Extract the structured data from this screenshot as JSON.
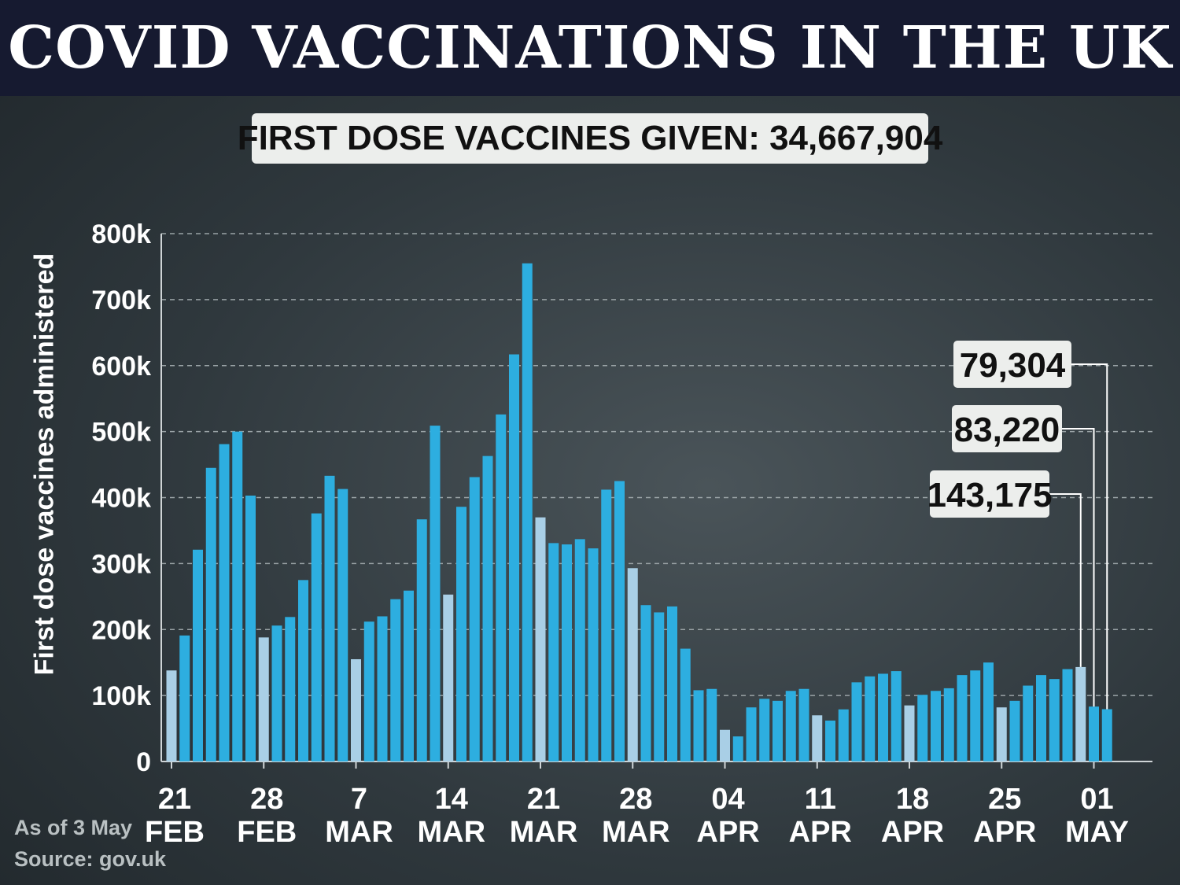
{
  "header": {
    "title": "COVID VACCINATIONS IN THE UK"
  },
  "subtitle": "FIRST DOSE VACCINES GIVEN: 34,667,904",
  "footnotes": {
    "as_of": "As of 3 May",
    "source": "Source: gov.uk"
  },
  "colors": {
    "weekday_bar": "#2daee0",
    "weekend_bar": "#a9cfe6",
    "header_bg": "#161a30"
  },
  "chart_data": {
    "type": "bar",
    "ylabel": "First dose vaccines administered",
    "ylim": [
      0,
      800000
    ],
    "yticks": [
      {
        "value": 0,
        "label": "0"
      },
      {
        "value": 100000,
        "label": "100k"
      },
      {
        "value": 200000,
        "label": "200k"
      },
      {
        "value": 300000,
        "label": "300k"
      },
      {
        "value": 400000,
        "label": "400k"
      },
      {
        "value": 500000,
        "label": "500k"
      },
      {
        "value": 600000,
        "label": "600k"
      },
      {
        "value": 700000,
        "label": "700k"
      },
      {
        "value": 800000,
        "label": "800k"
      }
    ],
    "grid": true,
    "xticks": [
      {
        "index": 0,
        "day": "21",
        "month": "FEB"
      },
      {
        "index": 7,
        "day": "28",
        "month": "FEB"
      },
      {
        "index": 14,
        "day": "7",
        "month": "MAR"
      },
      {
        "index": 21,
        "day": "14",
        "month": "MAR"
      },
      {
        "index": 28,
        "day": "21",
        "month": "MAR"
      },
      {
        "index": 35,
        "day": "28",
        "month": "MAR"
      },
      {
        "index": 42,
        "day": "04",
        "month": "APR"
      },
      {
        "index": 49,
        "day": "11",
        "month": "APR"
      },
      {
        "index": 56,
        "day": "18",
        "month": "APR"
      },
      {
        "index": 63,
        "day": "25",
        "month": "APR"
      },
      {
        "index": 70,
        "day": "01",
        "month": "MAY"
      }
    ],
    "values": [
      138000,
      191000,
      321000,
      445000,
      481000,
      500000,
      403000,
      188000,
      206000,
      219000,
      275000,
      376000,
      433000,
      413000,
      155000,
      212000,
      220000,
      246000,
      259000,
      367000,
      509000,
      253000,
      386000,
      431000,
      463000,
      526000,
      617000,
      755000,
      370000,
      331000,
      329000,
      337000,
      323000,
      412000,
      425000,
      293000,
      237000,
      226000,
      235000,
      171000,
      108000,
      110000,
      48000,
      38000,
      82000,
      95000,
      92000,
      107000,
      110000,
      70000,
      62000,
      79000,
      120000,
      129000,
      133000,
      137000,
      85000,
      101000,
      107000,
      111000,
      131000,
      138000,
      150000,
      82000,
      92000,
      115000,
      131000,
      125000,
      140000,
      143175,
      83220,
      79304
    ],
    "weekend_indices": [
      0,
      7,
      14,
      21,
      28,
      35,
      42,
      49,
      56,
      63,
      69
    ],
    "callouts": [
      {
        "index": 69,
        "value": 143175,
        "label": "143,175"
      },
      {
        "index": 70,
        "value": 83220,
        "label": "83,220"
      },
      {
        "index": 71,
        "value": 79304,
        "label": "79,304"
      }
    ]
  }
}
